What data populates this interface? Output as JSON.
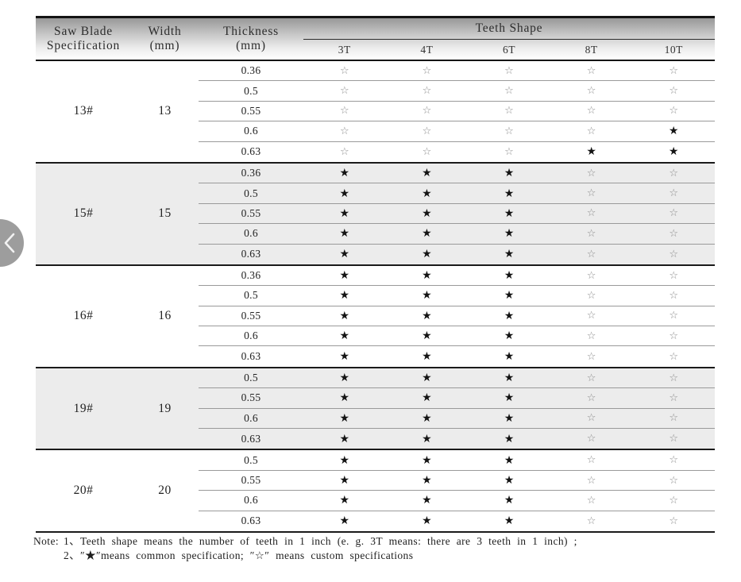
{
  "colors": {
    "header_gradient_top": "#989898",
    "header_gradient_bottom": "#ffffff",
    "shaded_row": "#ececec",
    "black_rule": "#1a1a1a",
    "gray_rule": "#9a9a9a",
    "star_common": "#141414",
    "star_custom": "#8e8e8e",
    "nav_circle": "#9d9d9d"
  },
  "nav": {
    "prev_button_icon": "chevron-left"
  },
  "table": {
    "col_headers": {
      "spec": [
        "Saw Blade",
        "Specification"
      ],
      "width": [
        "Width",
        "(mm)"
      ],
      "thickness": [
        "Thickness",
        "(mm)"
      ],
      "teeth_shape": "Teeth Shape",
      "teeth_cols": [
        "3T",
        "4T",
        "6T",
        "8T",
        "10T"
      ]
    },
    "symbols": {
      "common": "★",
      "custom": "☆"
    },
    "groups": [
      {
        "spec": "13#",
        "width": "13",
        "shaded": false,
        "rows": [
          {
            "thickness": "0.36",
            "teeth": [
              "custom",
              "custom",
              "custom",
              "custom",
              "custom"
            ]
          },
          {
            "thickness": "0.5",
            "teeth": [
              "custom",
              "custom",
              "custom",
              "custom",
              "custom"
            ]
          },
          {
            "thickness": "0.55",
            "teeth": [
              "custom",
              "custom",
              "custom",
              "custom",
              "custom"
            ]
          },
          {
            "thickness": "0.6",
            "teeth": [
              "custom",
              "custom",
              "custom",
              "custom",
              "common"
            ]
          },
          {
            "thickness": "0.63",
            "teeth": [
              "custom",
              "custom",
              "custom",
              "common",
              "common"
            ]
          }
        ]
      },
      {
        "spec": "15#",
        "width": "15",
        "shaded": true,
        "rows": [
          {
            "thickness": "0.36",
            "teeth": [
              "common",
              "common",
              "common",
              "custom",
              "custom"
            ]
          },
          {
            "thickness": "0.5",
            "teeth": [
              "common",
              "common",
              "common",
              "custom",
              "custom"
            ]
          },
          {
            "thickness": "0.55",
            "teeth": [
              "common",
              "common",
              "common",
              "custom",
              "custom"
            ]
          },
          {
            "thickness": "0.6",
            "teeth": [
              "common",
              "common",
              "common",
              "custom",
              "custom"
            ]
          },
          {
            "thickness": "0.63",
            "teeth": [
              "common",
              "common",
              "common",
              "custom",
              "custom"
            ]
          }
        ]
      },
      {
        "spec": "16#",
        "width": "16",
        "shaded": false,
        "rows": [
          {
            "thickness": "0.36",
            "teeth": [
              "common",
              "common",
              "common",
              "custom",
              "custom"
            ]
          },
          {
            "thickness": "0.5",
            "teeth": [
              "common",
              "common",
              "common",
              "custom",
              "custom"
            ]
          },
          {
            "thickness": "0.55",
            "teeth": [
              "common",
              "common",
              "common",
              "custom",
              "custom"
            ]
          },
          {
            "thickness": "0.6",
            "teeth": [
              "common",
              "common",
              "common",
              "custom",
              "custom"
            ]
          },
          {
            "thickness": "0.63",
            "teeth": [
              "common",
              "common",
              "common",
              "custom",
              "custom"
            ]
          }
        ]
      },
      {
        "spec": "19#",
        "width": "19",
        "shaded": true,
        "rows": [
          {
            "thickness": "0.5",
            "teeth": [
              "common",
              "common",
              "common",
              "custom",
              "custom"
            ]
          },
          {
            "thickness": "0.55",
            "teeth": [
              "common",
              "common",
              "common",
              "custom",
              "custom"
            ]
          },
          {
            "thickness": "0.6",
            "teeth": [
              "common",
              "common",
              "common",
              "custom",
              "custom"
            ]
          },
          {
            "thickness": "0.63",
            "teeth": [
              "common",
              "common",
              "common",
              "custom",
              "custom"
            ]
          }
        ]
      },
      {
        "spec": "20#",
        "width": "20",
        "shaded": false,
        "rows": [
          {
            "thickness": "0.5",
            "teeth": [
              "common",
              "common",
              "common",
              "custom",
              "custom"
            ]
          },
          {
            "thickness": "0.55",
            "teeth": [
              "common",
              "common",
              "common",
              "custom",
              "custom"
            ]
          },
          {
            "thickness": "0.6",
            "teeth": [
              "common",
              "common",
              "common",
              "custom",
              "custom"
            ]
          },
          {
            "thickness": "0.63",
            "teeth": [
              "common",
              "common",
              "common",
              "custom",
              "custom"
            ]
          }
        ]
      }
    ]
  },
  "note": {
    "prefix": "Note:",
    "items": [
      "1、Teeth shape means the number of teeth in 1 inch (e. g.  3T  means: there are 3 teeth in 1 inch) ;",
      "2、″★″means common specification;  ″☆″ means custom specifications"
    ]
  }
}
